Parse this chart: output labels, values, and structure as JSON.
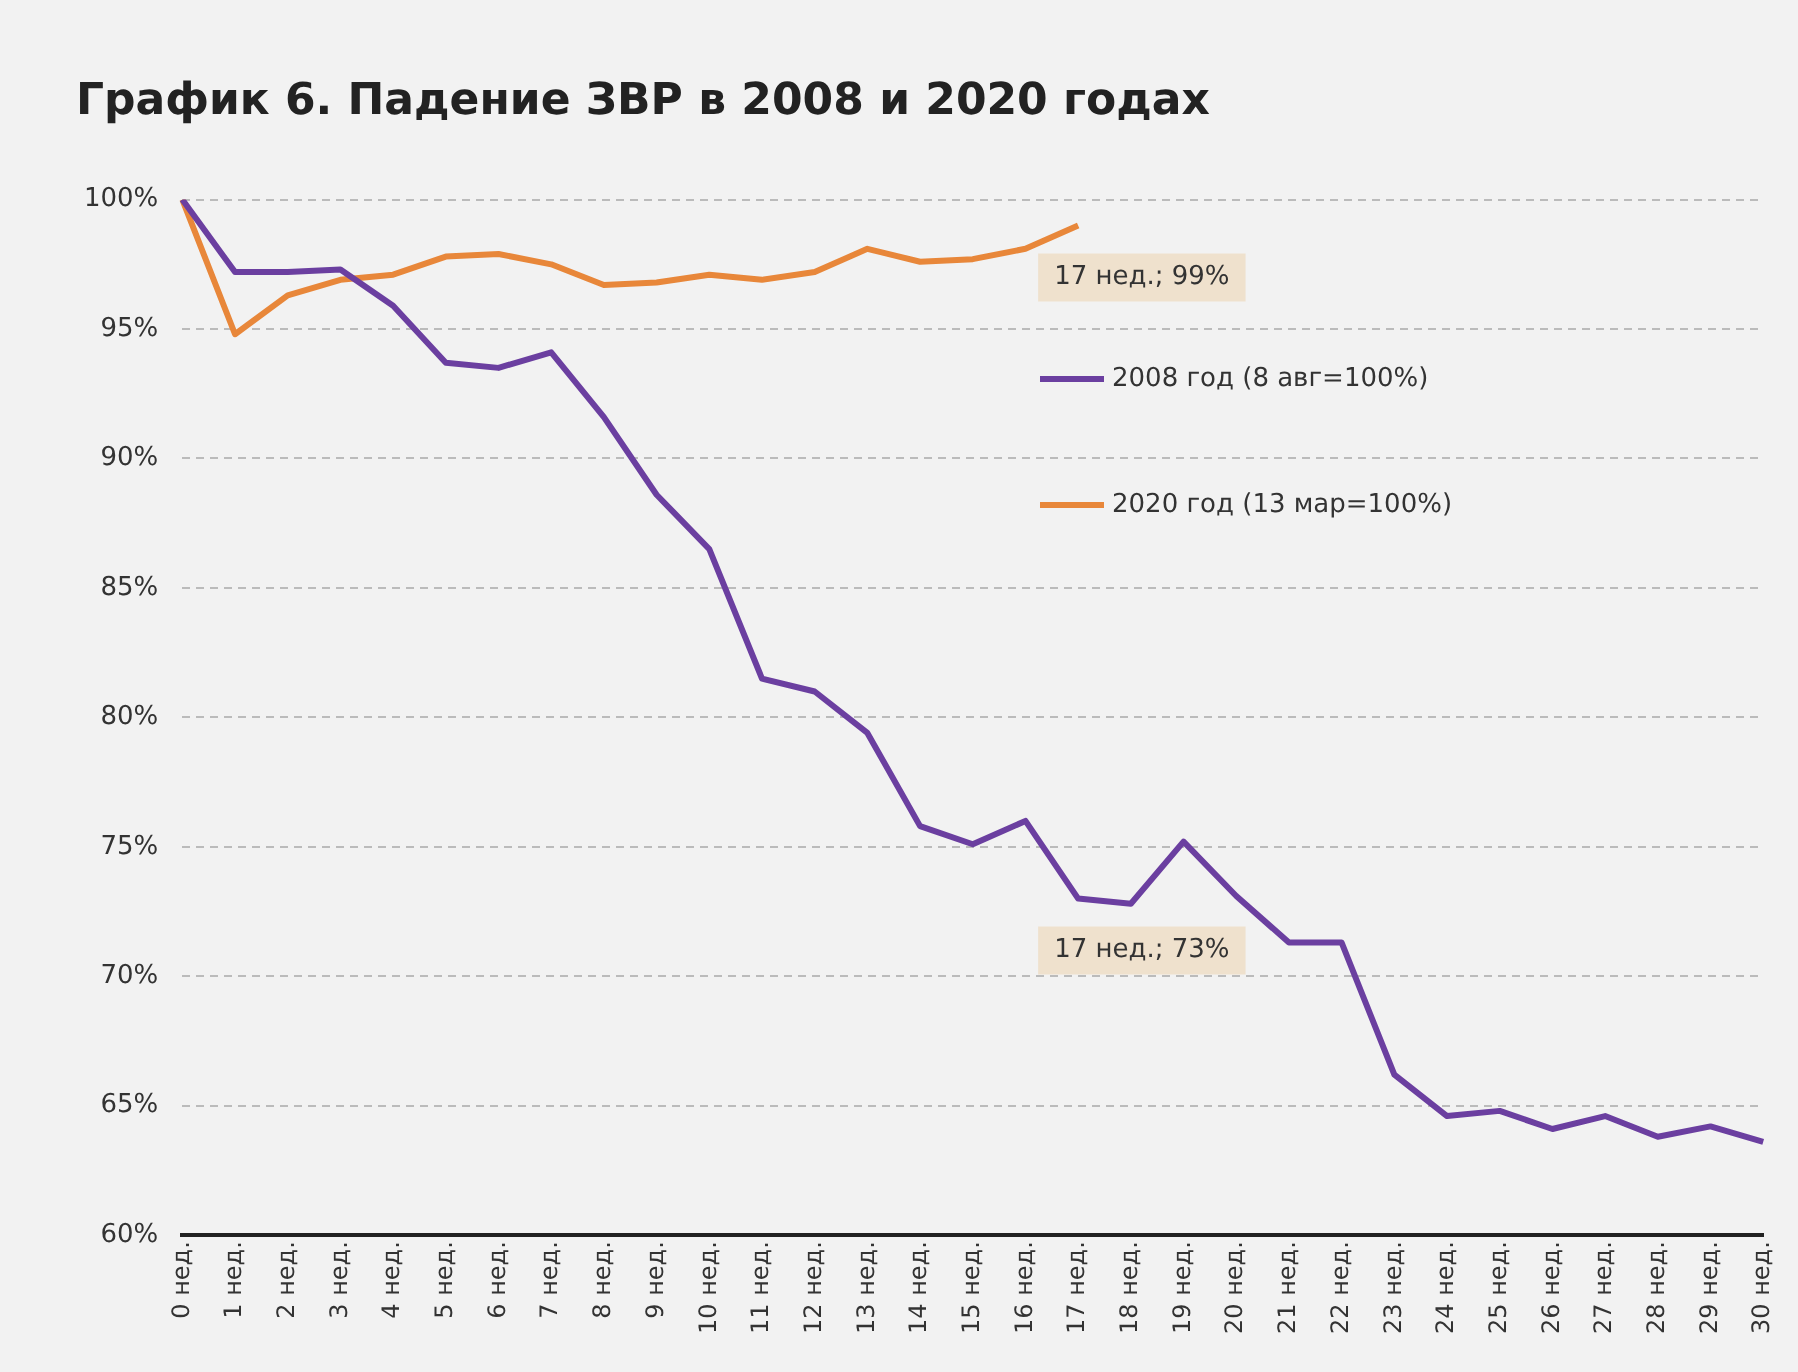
{
  "chart_data": {
    "type": "line",
    "title": "График 6. Падение ЗВР в 2008 и 2020 годах",
    "categories": [
      "0 нед.",
      "1 нед.",
      "2 нед.",
      "3 нед.",
      "4 нед.",
      "5 нед.",
      "6 нед.",
      "7 нед.",
      "8 нед.",
      "9 нед.",
      "10 нед.",
      "11 нед.",
      "12 нед.",
      "13 нед.",
      "14 нед.",
      "15 нед.",
      "16 нед.",
      "17 нед.",
      "18 нед.",
      "19 нед.",
      "20 нед.",
      "21 нед.",
      "22 нед.",
      "23 нед.",
      "24 нед.",
      "25 нед.",
      "26 нед.",
      "27 нед.",
      "28 нед.",
      "29 нед.",
      "30 нед."
    ],
    "series": [
      {
        "name": "2008 год (8 авг=100%)",
        "color": "#6b3fa0",
        "values": [
          100,
          97.2,
          97.2,
          97.3,
          95.9,
          93.7,
          93.5,
          94.1,
          91.6,
          88.6,
          86.5,
          81.5,
          81.0,
          79.4,
          75.8,
          75.1,
          76.0,
          73,
          72.8,
          75.2,
          73.1,
          71.3,
          71.3,
          66.2,
          64.6,
          64.8,
          64.1,
          64.6,
          63.8,
          64.2,
          63.6
        ]
      },
      {
        "name": "2020 год (13 мар=100%)",
        "color": "#e8873a",
        "values": [
          100,
          94.8,
          96.3,
          96.9,
          97.1,
          97.8,
          97.9,
          97.5,
          96.7,
          96.8,
          97.1,
          96.9,
          97.2,
          98.1,
          97.6,
          97.7,
          98.1,
          99,
          null,
          null,
          null,
          null,
          null,
          null,
          null,
          null,
          null,
          null,
          null,
          null,
          null
        ]
      }
    ],
    "ylim": [
      60,
      100
    ],
    "yticks": [
      {
        "value": 60,
        "label": "60%"
      },
      {
        "value": 65,
        "label": "65%"
      },
      {
        "value": 70,
        "label": "70%"
      },
      {
        "value": 75,
        "label": "75%"
      },
      {
        "value": 80,
        "label": "80%"
      },
      {
        "value": 85,
        "label": "85%"
      },
      {
        "value": 90,
        "label": "90%"
      },
      {
        "value": 95,
        "label": "95%"
      },
      {
        "value": 100,
        "label": "100%"
      }
    ],
    "grid": "y",
    "line_style": "solid",
    "legend": "right",
    "annotations": [
      {
        "text": "17 нед.; 99%",
        "x": "17 нед.",
        "y": 99
      },
      {
        "text": "17 нед.; 73%",
        "x": "17 нед.",
        "y": 73
      }
    ]
  }
}
